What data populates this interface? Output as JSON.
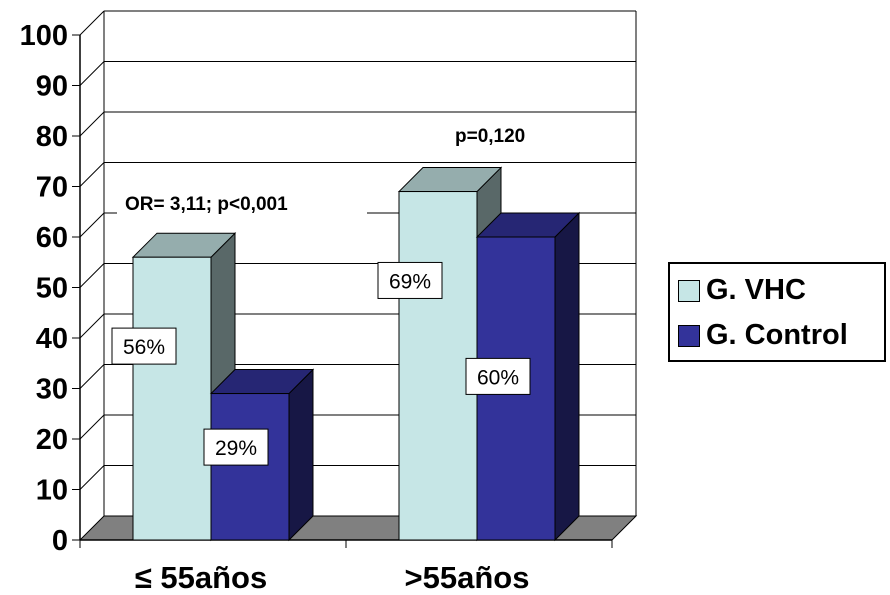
{
  "chart_data": {
    "type": "bar",
    "categories": [
      "≤ 55años",
      ">55años"
    ],
    "series": [
      {
        "name": "G. VHC",
        "values": [
          56,
          69
        ],
        "labels": [
          "56%",
          "69%"
        ],
        "color": "#c6e6e6"
      },
      {
        "name": "G. Control",
        "values": [
          29,
          60
        ],
        "labels": [
          "29%",
          "60%"
        ],
        "color": "#33339a"
      }
    ],
    "ylim": [
      0,
      100
    ],
    "yticks": [
      0,
      10,
      20,
      30,
      40,
      50,
      60,
      70,
      80,
      90,
      100
    ],
    "annotations": [
      "OR= 3,11; p<0,001",
      "p=0,120"
    ],
    "grid": true,
    "three_d": true,
    "legend_position": "right"
  }
}
